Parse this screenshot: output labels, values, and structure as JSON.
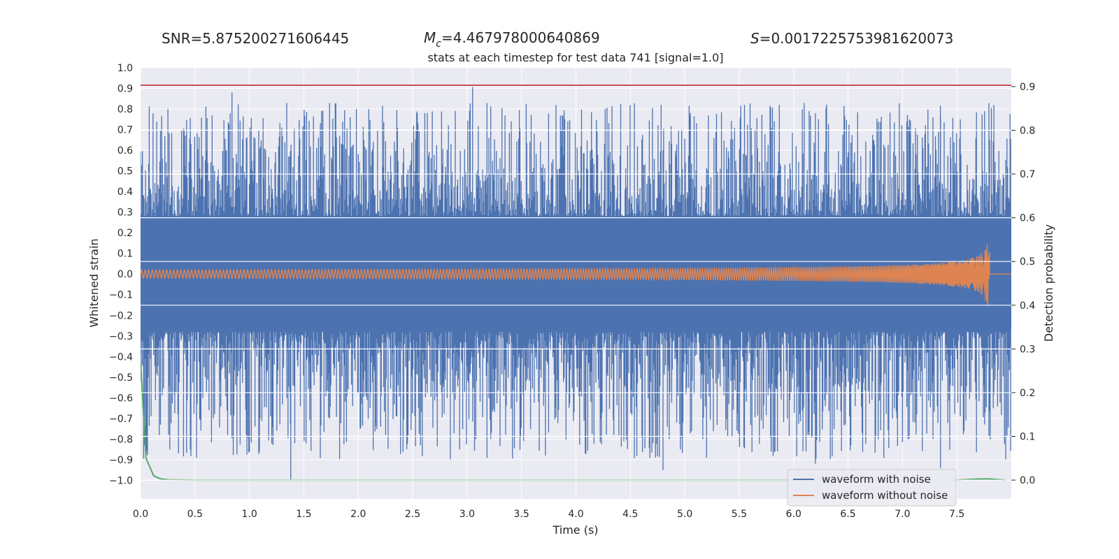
{
  "header": {
    "snr_label": "SNR=5.875200271606445",
    "mc_symbol": "M",
    "mc_subscript": "c",
    "mc_value": "=4.467978000640869",
    "s_symbol": "S",
    "s_value": "=0.0017225753981620073"
  },
  "chart_data": {
    "type": "line",
    "title": "stats at each timestep for test data 741 [signal=1.0]",
    "xlabel": "Time (s)",
    "ylabel": "Whitened strain",
    "y2label": "Detection probability",
    "xlim": [
      0.0,
      8.0
    ],
    "ylim": [
      -1.09,
      1.0
    ],
    "y2lim": [
      -0.043,
      0.943
    ],
    "x_ticks": [
      "0.0",
      "0.5",
      "1.0",
      "1.5",
      "2.0",
      "2.5",
      "3.0",
      "3.5",
      "4.0",
      "4.5",
      "5.0",
      "5.5",
      "6.0",
      "6.5",
      "7.0",
      "7.5"
    ],
    "y_ticks": [
      "1.0",
      "0.9",
      "0.8",
      "0.7",
      "0.6",
      "0.5",
      "0.4",
      "0.3",
      "0.2",
      "0.1",
      "0.0",
      "−0.1",
      "−0.2",
      "−0.3",
      "−0.4",
      "−0.5",
      "−0.6",
      "−0.7",
      "−0.8",
      "−0.9",
      "−1.0"
    ],
    "y2_ticks": [
      "0.9",
      "0.8",
      "0.7",
      "0.6",
      "0.5",
      "0.4",
      "0.3",
      "0.2",
      "0.1",
      "0.0"
    ],
    "grid": true,
    "legend_position": "lower-right",
    "series": [
      {
        "name": "waveform with noise",
        "color": "#4c72b0",
        "axis": "left",
        "style": "noisy strain, dense band |y|<=0.27, spikes up to 0.91 and down to -1.0",
        "band": [
          -0.27,
          0.27
        ]
      },
      {
        "name": "waveform without noise",
        "color": "#dd8452",
        "axis": "left",
        "style": "chirp, amplitude grows from ~0.02 to ~0.16 at merger t=7.8 s, then 0",
        "merger_time": 7.8
      },
      {
        "name": "",
        "color": "#55a868",
        "axis": "right",
        "x": [
          0.0,
          0.05,
          0.12,
          0.18,
          0.25,
          0.5,
          1.0,
          7.5,
          7.65,
          7.78,
          7.95
        ],
        "values": [
          0.27,
          0.05,
          0.01,
          0.003,
          0.001,
          0.0,
          0.0,
          0.0,
          0.002,
          0.003,
          0.0
        ]
      },
      {
        "name": "",
        "color": "#c44e52",
        "axis": "right",
        "x": [
          0.0,
          8.0
        ],
        "values": [
          0.903,
          0.903
        ]
      }
    ]
  }
}
